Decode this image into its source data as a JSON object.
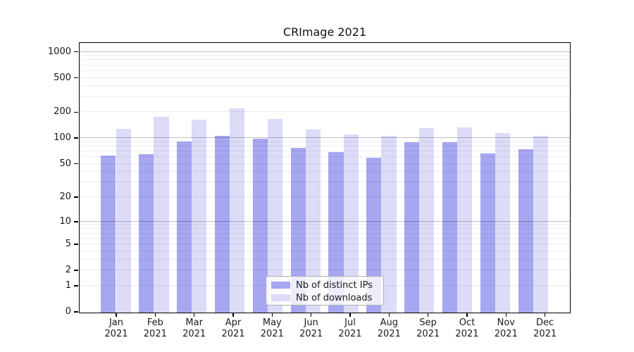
{
  "chart_data": {
    "type": "bar",
    "title": "CRImage 2021",
    "categories": [
      "Jan 2021",
      "Feb 2021",
      "Mar 2021",
      "Apr 2021",
      "May 2021",
      "Jun 2021",
      "Jul 2021",
      "Aug 2021",
      "Sep 2021",
      "Oct 2021",
      "Nov 2021",
      "Dec 2021"
    ],
    "series": [
      {
        "name": "Nb of distinct IPs",
        "color": "#a6a6f1",
        "values": [
          63,
          66,
          92,
          108,
          100,
          78,
          70,
          60,
          90,
          91,
          67,
          75
        ]
      },
      {
        "name": "Nb of downloads",
        "color": "#dcdcf8",
        "values": [
          130,
          177,
          166,
          225,
          167,
          127,
          112,
          108,
          133,
          134,
          115,
          107
        ]
      }
    ],
    "xlabel": "",
    "ylabel": "",
    "yscale": "log(value+1)",
    "ylim": [
      0,
      1264
    ],
    "yticks": [
      0,
      1,
      2,
      5,
      10,
      20,
      50,
      100,
      200,
      500,
      1000
    ],
    "minor_gridlines": [
      3,
      4,
      6,
      7,
      8,
      9,
      30,
      40,
      60,
      70,
      80,
      90,
      300,
      400,
      600,
      700,
      800,
      900
    ],
    "major_gridlines": [
      10,
      100,
      1000
    ],
    "grid": true,
    "legend_position": "lower center",
    "axis_color": "#000000",
    "background_color": "#ffffff"
  }
}
